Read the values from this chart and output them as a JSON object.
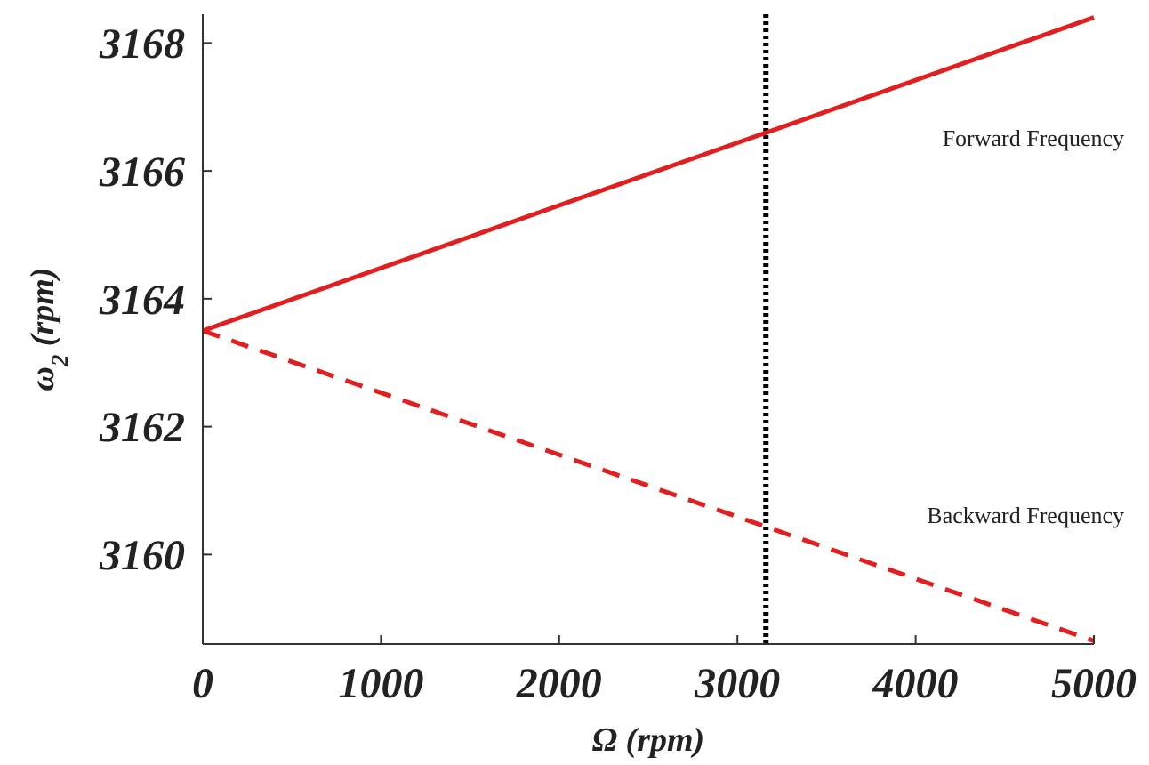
{
  "chart_data": {
    "type": "line",
    "xlabel": "Ω (rpm)",
    "ylabel": "ω$_{2}$ (rpm)",
    "xlim": [
      0,
      5000
    ],
    "xticks": [
      0,
      1000,
      2000,
      3000,
      4000,
      5000
    ],
    "ylim": [
      3158.6,
      3168.45
    ],
    "yticks": [
      3160,
      3162,
      3164,
      3166,
      3168
    ],
    "x": [
      0,
      5000
    ],
    "series": [
      {
        "name": "Forward Frequency",
        "color": "#e02020",
        "values": [
          3163.5,
          3168.4
        ],
        "line_style": "solid"
      },
      {
        "name": "Backward Frequency",
        "color": "#e02020",
        "values": [
          3163.5,
          3158.65
        ],
        "line_style": "dashed"
      }
    ],
    "ref_lines": [
      {
        "axis": "x",
        "value": 3160,
        "color": "#000000",
        "line_style": "dotted"
      }
    ]
  }
}
